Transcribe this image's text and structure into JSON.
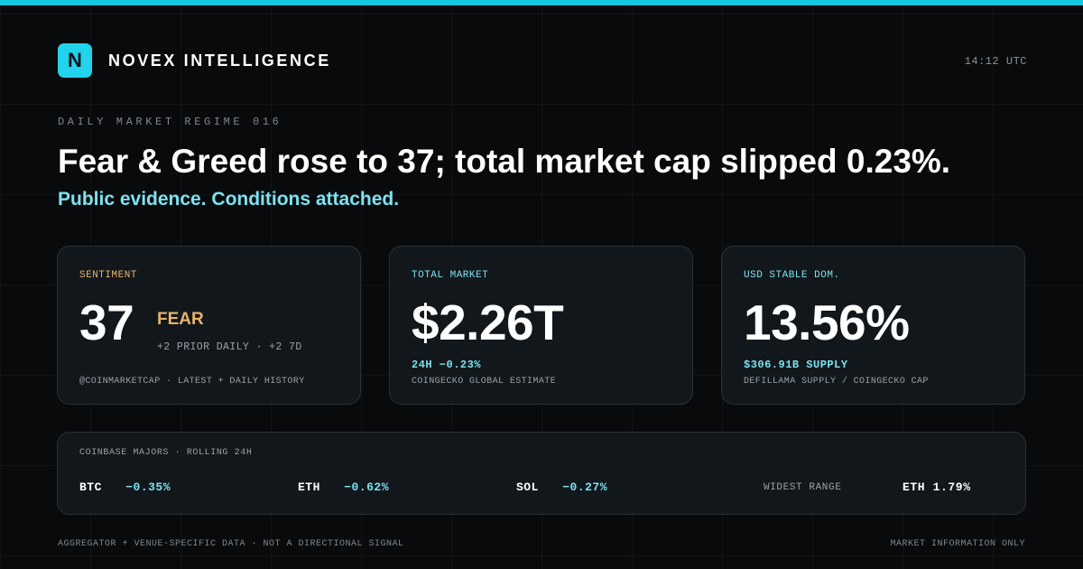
{
  "colors": {
    "accent": "#22d3ee",
    "accent_text": "#7de2f1",
    "fear": "#e8b36c",
    "background": "#080a0c"
  },
  "brand": {
    "logo_letter": "N",
    "name": "NOVEX INTELLIGENCE"
  },
  "clock": "14:12 UTC",
  "kicker": "DAILY MARKET REGIME 016",
  "headline": "Fear & Greed rose to 37; total market cap slipped 0.23%.",
  "subhead": "Public evidence. Conditions attached.",
  "cards": {
    "sentiment": {
      "label": "SENTIMENT",
      "value": "37",
      "classification": "FEAR",
      "change": "+2 PRIOR DAILY · +2 7D",
      "source": "@COINMARKETCAP · LATEST + DAILY HISTORY"
    },
    "total_market": {
      "label": "TOTAL MARKET",
      "value": "$2.26T",
      "change": "24H −0.23%",
      "source": "COINGECKO GLOBAL ESTIMATE"
    },
    "stable_dominance": {
      "label": "USD STABLE DOM.",
      "value": "13.56%",
      "supply": "$306.91B SUPPLY",
      "source": "DEFILLAMA SUPPLY / COINGECKO CAP"
    }
  },
  "majors": {
    "label": "COINBASE MAJORS · ROLLING 24H",
    "items": [
      {
        "symbol": "BTC",
        "change": "−0.35%"
      },
      {
        "symbol": "ETH",
        "change": "−0.62%"
      },
      {
        "symbol": "SOL",
        "change": "−0.27%"
      }
    ],
    "widest_label": "WIDEST RANGE",
    "widest_value": "ETH 1.79%"
  },
  "footer": {
    "left": "AGGREGATOR + VENUE-SPECIFIC DATA · NOT A DIRECTIONAL SIGNAL",
    "right": "MARKET INFORMATION ONLY"
  }
}
